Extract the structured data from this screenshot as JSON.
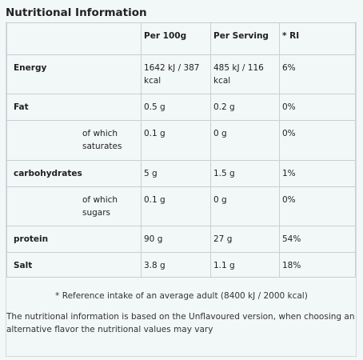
{
  "title": "Nutritional Information",
  "table": {
    "headers": [
      "",
      "Per 100g",
      "Per Serving",
      "* RI"
    ],
    "rows": [
      {
        "name": "Energy",
        "per100": "1642 kJ / 387 kcal",
        "serving": "485 kJ / 116 kcal",
        "ri": "6%"
      },
      {
        "name": "Fat",
        "per100": "0.5 g",
        "serving": "0.2 g",
        "ri": "0%"
      },
      {
        "name": "of which saturates",
        "per100": "0.1 g",
        "serving": "0 g",
        "ri": "0%"
      },
      {
        "name": "carbohydrates",
        "per100": "5 g",
        "serving": "1.5 g",
        "ri": "1%"
      },
      {
        "name": "of which sugars",
        "per100": "0.1 g",
        "serving": "0 g",
        "ri": "0%"
      },
      {
        "name": "protein",
        "per100": "90 g",
        "serving": "27 g",
        "ri": "54%"
      },
      {
        "name": "Salt",
        "per100": "3.8 g",
        "serving": "1.1 g",
        "ri": "18%"
      }
    ]
  },
  "footnote": "* Reference intake of an average adult (8400 kJ / 2000 kcal)",
  "info_text": "The nutritional information is based on the Unflavoured version, when choosing an alternative flavor the nutritional values may vary"
}
